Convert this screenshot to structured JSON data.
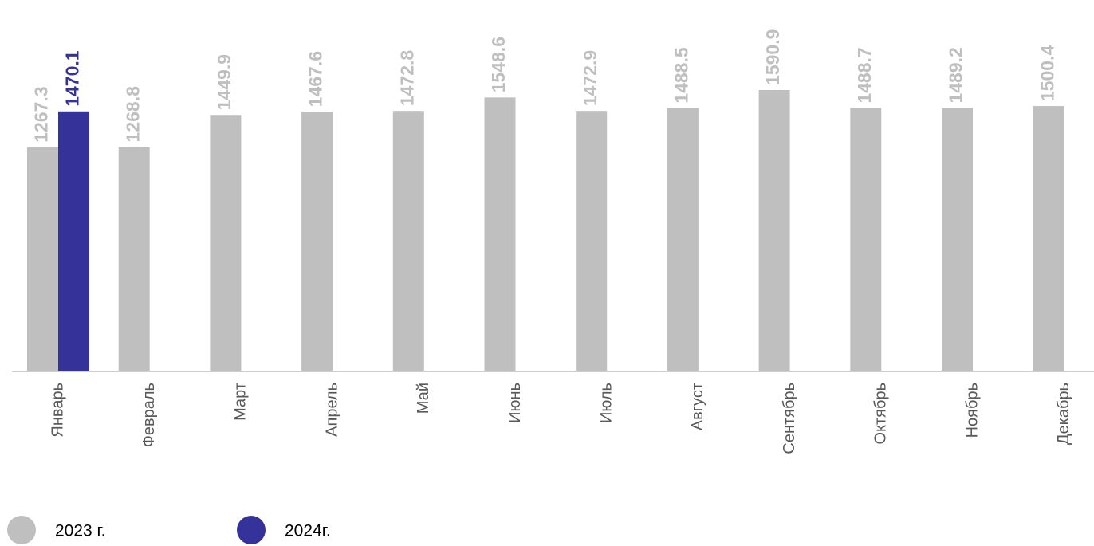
{
  "chart_data": {
    "type": "bar",
    "categories": [
      "Январь",
      "Февраль",
      "Март",
      "Апрель",
      "Май",
      "Июнь",
      "Июль",
      "Август",
      "Сентябрь",
      "Октябрь",
      "Ноябрь",
      "Декабрь"
    ],
    "series": [
      {
        "name": "2023 г.",
        "color": "#bfbfbf",
        "values": [
          1267.3,
          1268.8,
          1449.9,
          1467.6,
          1472.8,
          1548.6,
          1472.9,
          1488.5,
          1590.9,
          1488.7,
          1489.2,
          1500.4
        ]
      },
      {
        "name": "2024г.",
        "color": "#35339a",
        "values": [
          1470.1,
          null,
          null,
          null,
          null,
          null,
          null,
          null,
          null,
          null,
          null,
          null
        ]
      }
    ],
    "ylim": [
      0,
      2100
    ]
  }
}
